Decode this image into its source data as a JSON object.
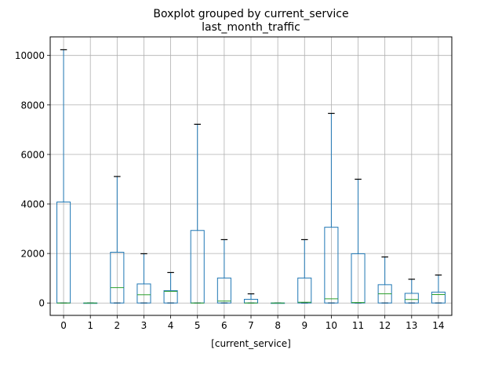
{
  "chart_data": {
    "type": "boxplot",
    "suptitle": "Boxplot grouped by current_service",
    "title": "last_month_traffic",
    "xlabel": "[current_service]",
    "ylabel": "",
    "categories": [
      "0",
      "1",
      "2",
      "3",
      "4",
      "5",
      "6",
      "7",
      "8",
      "9",
      "10",
      "11",
      "12",
      "13",
      "14"
    ],
    "yticks": [
      0,
      2000,
      4000,
      6000,
      8000,
      10000
    ],
    "ylim": [
      -500,
      10750
    ],
    "grid": true,
    "boxes": [
      {
        "category": "0",
        "whislo": 0,
        "q1": 0,
        "med": 0,
        "q3": 4080,
        "whishi": 10230
      },
      {
        "category": "1",
        "whislo": 0,
        "q1": 0,
        "med": 0,
        "q3": 0,
        "whishi": 0
      },
      {
        "category": "2",
        "whislo": 0,
        "q1": 0,
        "med": 620,
        "q3": 2050,
        "whishi": 5110
      },
      {
        "category": "3",
        "whislo": 0,
        "q1": 0,
        "med": 330,
        "q3": 770,
        "whishi": 1990
      },
      {
        "category": "4",
        "whislo": 0,
        "q1": 0,
        "med": 470,
        "q3": 500,
        "whishi": 1230
      },
      {
        "category": "5",
        "whislo": 0,
        "q1": 0,
        "med": 0,
        "q3": 2930,
        "whishi": 7220
      },
      {
        "category": "6",
        "whislo": 0,
        "q1": 0,
        "med": 80,
        "q3": 1010,
        "whishi": 2560
      },
      {
        "category": "7",
        "whislo": 0,
        "q1": 0,
        "med": 0,
        "q3": 150,
        "whishi": 370
      },
      {
        "category": "8",
        "whislo": 0,
        "q1": 0,
        "med": 0,
        "q3": 0,
        "whishi": 0
      },
      {
        "category": "9",
        "whislo": 0,
        "q1": 0,
        "med": 30,
        "q3": 1010,
        "whishi": 2560
      },
      {
        "category": "10",
        "whislo": 0,
        "q1": 0,
        "med": 170,
        "q3": 3060,
        "whishi": 7660
      },
      {
        "category": "11",
        "whislo": 0,
        "q1": 0,
        "med": 20,
        "q3": 1990,
        "whishi": 5000
      },
      {
        "category": "12",
        "whislo": 0,
        "q1": 0,
        "med": 370,
        "q3": 740,
        "whishi": 1860
      },
      {
        "category": "13",
        "whislo": 0,
        "q1": 0,
        "med": 140,
        "q3": 390,
        "whishi": 960
      },
      {
        "category": "14",
        "whislo": 0,
        "q1": 0,
        "med": 340,
        "q3": 440,
        "whishi": 1130
      }
    ],
    "colors": {
      "box": "#1f77b4",
      "median": "#2ca02c",
      "cap": "#000000",
      "grid": "#b0b0b0",
      "axes": "#000000"
    }
  }
}
